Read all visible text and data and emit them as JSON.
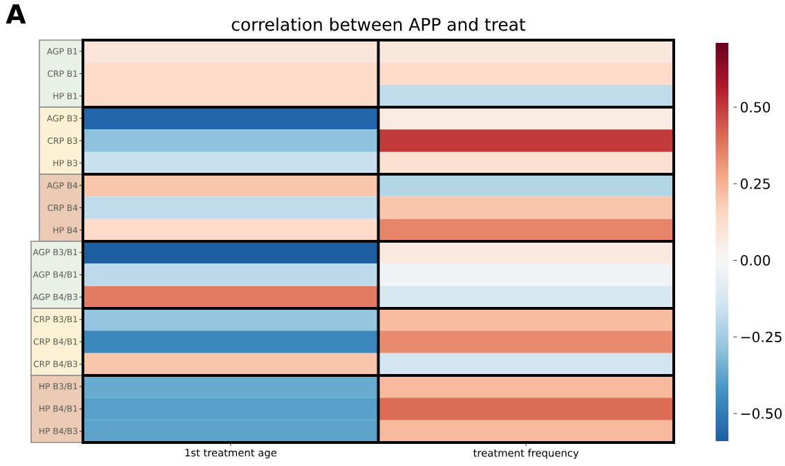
{
  "chart_data": {
    "type": "heatmap",
    "title": "correlation between APP and treat",
    "annotations": [
      "A"
    ],
    "categories": [
      "1st treatment age",
      "treatment frequency"
    ],
    "y_categories": [
      "AGP B1",
      "CRP B1",
      "HP B1",
      "AGP B3",
      "CRP B3",
      "HP B3",
      "AGP B4",
      "CRP B4",
      "HP B4",
      "AGP B3/B1",
      "AGP B4/B1",
      "AGP B4/B3",
      "CRP B3/B1",
      "CRP B4/B1",
      "CRP B4/B3",
      "HP B3/B1",
      "HP B4/B1",
      "HP B4/B3"
    ],
    "cells": [
      [
        0.09,
        0.08
      ],
      [
        0.14,
        0.14
      ],
      [
        0.14,
        -0.18
      ],
      [
        -0.57,
        0.06
      ],
      [
        -0.29,
        0.5
      ],
      [
        -0.16,
        0.11
      ],
      [
        0.2,
        -0.21
      ],
      [
        -0.18,
        0.2
      ],
      [
        0.14,
        0.35
      ],
      [
        -0.59,
        0.07
      ],
      [
        -0.19,
        -0.03
      ],
      [
        0.37,
        -0.12
      ],
      [
        -0.28,
        0.22
      ],
      [
        -0.46,
        0.34
      ],
      [
        0.2,
        -0.14
      ],
      [
        -0.36,
        0.23
      ],
      [
        -0.39,
        0.4
      ],
      [
        -0.38,
        0.23
      ]
    ],
    "clim": [
      -0.59,
      0.71
    ],
    "cticks": [
      {
        "value": -0.5,
        "label": "−0.50"
      },
      {
        "value": -0.25,
        "label": "−0.25"
      },
      {
        "value": 0,
        "label": "0.00"
      },
      {
        "value": 0.25,
        "label": "0.25"
      },
      {
        "value": 0.5,
        "label": "0.50"
      }
    ]
  }
}
